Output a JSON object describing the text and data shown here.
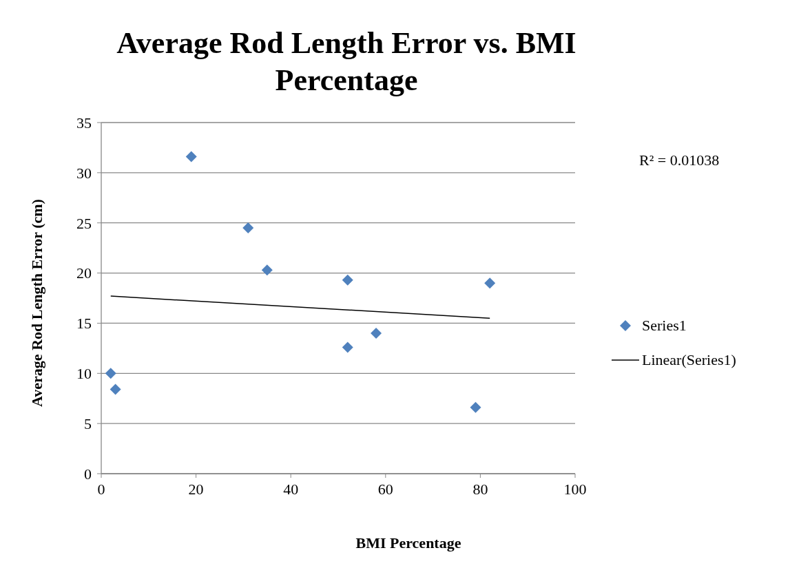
{
  "chart_data": {
    "type": "scatter",
    "title": "Average Rod Length Error vs. BMI Percentage",
    "xlabel": "BMI Percentage",
    "ylabel": "Average Rod Length Error (cm)",
    "series": [
      {
        "name": "Series1",
        "color": "#4f81bd",
        "marker": "diamond",
        "x": [
          2,
          3,
          19,
          31,
          35,
          52,
          52,
          58,
          79,
          82
        ],
        "values": [
          10.0,
          8.4,
          31.6,
          24.5,
          20.3,
          19.3,
          12.6,
          14.0,
          6.6,
          19.0
        ]
      },
      {
        "name": "Linear(Series1)",
        "type": "line",
        "color": "#000000",
        "marker": "none",
        "line_style": "solid",
        "x": [
          2,
          82
        ],
        "values": [
          17.7,
          15.5
        ]
      }
    ],
    "annotations": [
      "R² = 0.01038"
    ],
    "xlim": [
      0,
      100
    ],
    "xticks": [
      0,
      20,
      40,
      60,
      80,
      100
    ],
    "ylim": [
      0,
      35
    ],
    "yticks": [
      0,
      5,
      10,
      15,
      20,
      25,
      30,
      35
    ],
    "grid": "y",
    "legend": "right"
  }
}
